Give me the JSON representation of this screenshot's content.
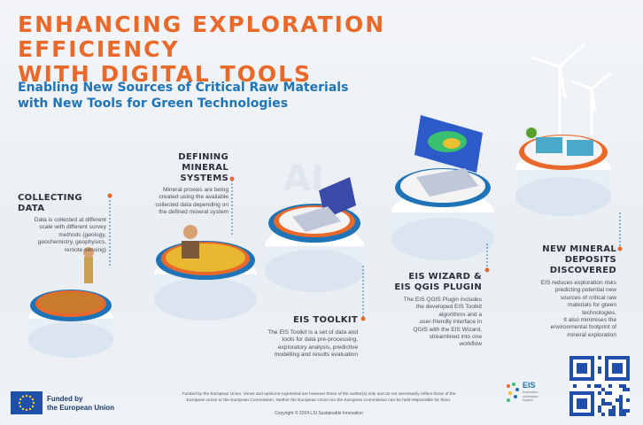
{
  "title": {
    "line1": "ENHANCING EXPLORATION EFFICIENCY",
    "line2": "WITH DIGITAL TOOLS"
  },
  "subtitle": {
    "line1": "Enabling New Sources of Critical Raw Materials",
    "line2": "with New Tools for Green Technologies"
  },
  "stages": {
    "collecting": {
      "title": "COLLECTING DATA",
      "desc": [
        "Data is collected at different",
        "scale with different survey",
        "methods (geology,",
        "geochemistry, geophysics,",
        "remote sensing)"
      ]
    },
    "defining": {
      "title_lines": [
        "DEFINING MINERAL",
        "SYSTEMS"
      ],
      "desc": [
        "Mineral proxies are being",
        "created using the available",
        "collected data depending on",
        "the defined mineral system"
      ]
    },
    "toolkit": {
      "title": "EIS TOOLKIT",
      "desc": [
        "The EIS Toolkit is a set of data and",
        "tools for data pre-processing,",
        "exploratory analysis, predictive",
        "modelling and results evaluation"
      ]
    },
    "wizard": {
      "title_lines": [
        "EIS WIZARD &",
        "EIS QGIS PLUGIN"
      ],
      "desc": [
        "The EIS QGIS Plugin includes",
        "the developed EIS Toolkit",
        "algorithms and a",
        "user-friendly interface in",
        "QGIS with the EIS Wizard,",
        "streamlined into one",
        "workflow"
      ]
    },
    "deposits": {
      "title_lines": [
        "NEW MINERAL",
        "DEPOSITS DISCOVERED"
      ],
      "desc": [
        "EIS reduces exploration risks",
        "predicting potential new",
        "sources of critical raw",
        "materials for green",
        "technologies.",
        "It also minimises the",
        "environmental footprint of",
        "mineral exploration"
      ]
    }
  },
  "footer": {
    "funded_line1": "Funded by",
    "funded_line2": "the European Union",
    "disclaimer_line1": "Funded by the European Union. Views and opinions expressed are however those of the author(s) only and do not necessarily reflect those of the",
    "disclaimer_line2": "European Union or the European Commission. Neither the European Union nor the European Commission can be held responsible for them.",
    "copyright": "Copyright © 2024 LSI Sustainable Innovation",
    "eis_logo": "EIS",
    "eis_logo_sub": [
      "Exploration",
      "Information",
      "System"
    ]
  },
  "colors": {
    "accent_orange": "#e8692a",
    "accent_blue": "#1f74b8",
    "eu_blue": "#1f4fa8"
  }
}
